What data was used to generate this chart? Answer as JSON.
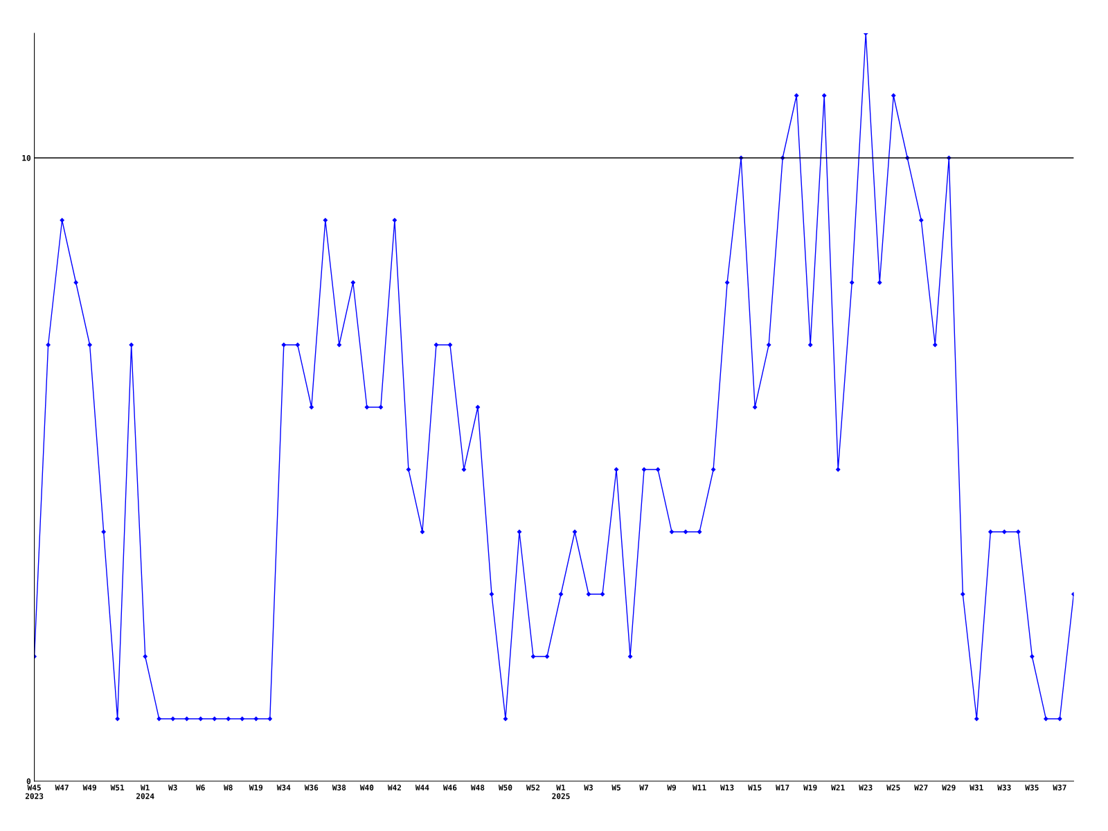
{
  "chart_data": {
    "type": "line",
    "categories": [
      "W45\n2023",
      null,
      "W47",
      null,
      "W49",
      null,
      "W51",
      null,
      "W1\n2024",
      null,
      "W3",
      null,
      "W6",
      null,
      "W8",
      null,
      "W19",
      null,
      "W34",
      null,
      "W36",
      null,
      "W38",
      null,
      "W40",
      null,
      "W42",
      null,
      "W44",
      null,
      "W46",
      null,
      "W48",
      null,
      "W50",
      null,
      "W52",
      null,
      "W1\n2025",
      null,
      "W3",
      null,
      "W5",
      null,
      "W7",
      null,
      "W9",
      null,
      "W11",
      null,
      "W13",
      null,
      "W15",
      null,
      "W17",
      null,
      "W19",
      null,
      "W21",
      null,
      "W23",
      null,
      "W25",
      null,
      "W27",
      null,
      "W29",
      null,
      "W31",
      null,
      "W33",
      null,
      "W35",
      null,
      "W37",
      null
    ],
    "series": [
      {
        "color": "#0000ff",
        "values": [
          2,
          7,
          9,
          8,
          7,
          4,
          1,
          7,
          2,
          1,
          1,
          1,
          1,
          1,
          1,
          1,
          1,
          1,
          7,
          7,
          6,
          9,
          7,
          8,
          6,
          6,
          9,
          5,
          4,
          7,
          7,
          5,
          6,
          3,
          1,
          4,
          2,
          2,
          3,
          4,
          3,
          3,
          5,
          2,
          5,
          5,
          4,
          4,
          4,
          5,
          8,
          10,
          6,
          7,
          10,
          11,
          7,
          11,
          5,
          8,
          12,
          8,
          11,
          10,
          9,
          7,
          10,
          3,
          1,
          4,
          4,
          4,
          2,
          1,
          1,
          3
        ]
      }
    ],
    "ylim": [
      0,
      12
    ],
    "yticks": [
      0,
      10
    ],
    "ref_lines": [
      {
        "axis": "y",
        "value": 10,
        "color": "#000000"
      }
    ],
    "marker": "diamond",
    "grid": false,
    "legend": false
  }
}
